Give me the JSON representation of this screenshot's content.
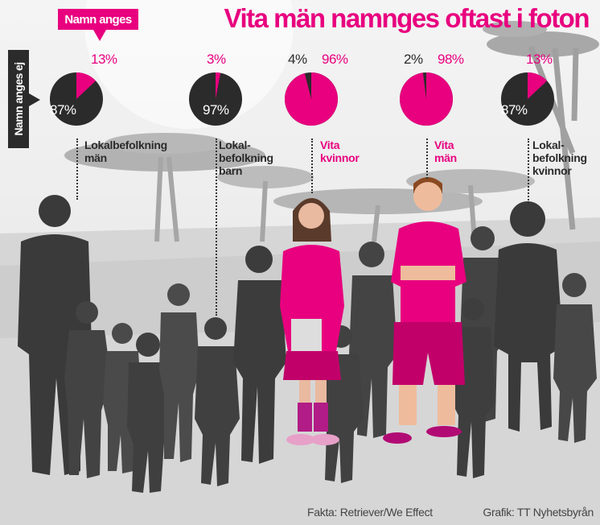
{
  "title": "Vita män namnges oftast i foton",
  "legend": {
    "named": "Namn anges",
    "unnamed": "Namn anges ej"
  },
  "colors": {
    "named": "#e8007f",
    "unnamed": "#2b2b2b",
    "figures": "#3a3a3a"
  },
  "chart_data": {
    "type": "pie",
    "series_labels": [
      "Namn anges",
      "Namn anges ej"
    ],
    "pies": [
      {
        "label": "Lokalbefolkning\nmän",
        "named_pct": 13,
        "unnamed_pct": 87,
        "named_label": "13%",
        "unnamed_label": "87%"
      },
      {
        "label": "Lokal-\nbefolkning\nbarn",
        "named_pct": 3,
        "unnamed_pct": 97,
        "named_label": "3%",
        "unnamed_label": "97%"
      },
      {
        "label": "Vita\nkvinnor",
        "named_pct": 96,
        "unnamed_pct": 4,
        "named_label": "96%",
        "unnamed_label": "4%"
      },
      {
        "label": "Vita\nmän",
        "named_pct": 98,
        "unnamed_pct": 2,
        "named_label": "98%",
        "unnamed_label": "2%"
      },
      {
        "label": "Lokal-\nbefolkning\nkvinnor",
        "named_pct": 13,
        "unnamed_pct": 87,
        "named_label": "13%",
        "unnamed_label": "87%"
      }
    ]
  },
  "footer": {
    "source": "Fakta: Retriever/We Effect",
    "credit": "Grafik: TT Nyhetsbyrån"
  }
}
